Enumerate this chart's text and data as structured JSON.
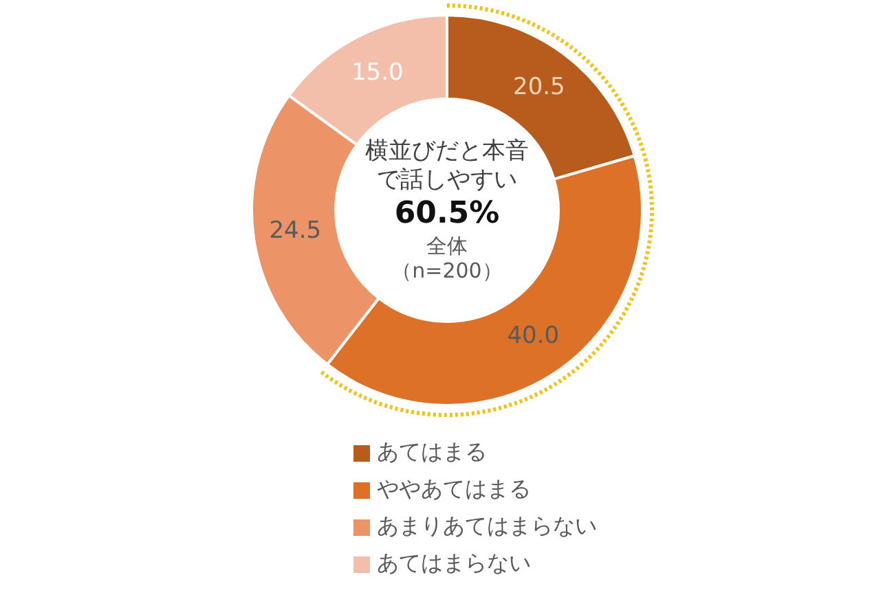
{
  "chart_data": {
    "type": "donut",
    "title": "横並びだと本音で話しやすい",
    "annotations": [
      "60.5%",
      "全体",
      "（n=200）"
    ],
    "categories": [
      "あてはまる",
      "ややあてはまる",
      "あまりあてはまらない",
      "あてはまらない"
    ],
    "values": [
      20.5,
      40.0,
      24.5,
      15.0
    ],
    "value_labels": [
      "20.5",
      "40.0",
      "24.5",
      "15.0"
    ],
    "colors": [
      "#b85c1e",
      "#dc7127",
      "#ec9367",
      "#f3bfab"
    ],
    "legend": "bottom"
  }
}
